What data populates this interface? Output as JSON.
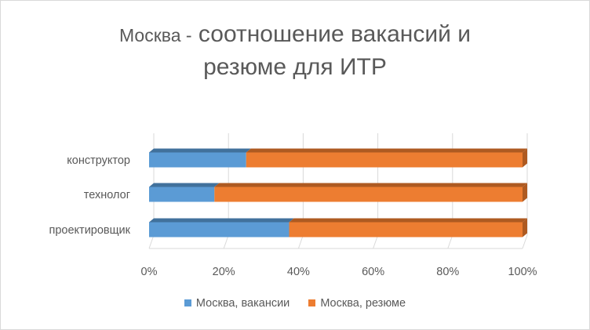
{
  "chart_data": {
    "type": "bar",
    "orientation": "horizontal",
    "stacking": "percent",
    "title_prefix": "Москва -",
    "title_rest_line1": "соотношение вакансий и",
    "title_line2": "резюме для ИТР",
    "categories": [
      "конструктор",
      "технолог",
      "проектировщик"
    ],
    "series": [
      {
        "name": "Москва, вакансии",
        "values": [
          26,
          17.5,
          37.5
        ],
        "color": "#5b9bd5",
        "color_dark": "#41719c"
      },
      {
        "name": "Москва, резюме",
        "values": [
          74,
          82.5,
          62.5
        ],
        "color": "#ed7d31",
        "color_dark": "#ae5a21"
      }
    ],
    "x_ticks": [
      "0%",
      "20%",
      "40%",
      "60%",
      "80%",
      "100%"
    ],
    "xlim": [
      0,
      100
    ],
    "grid": true,
    "legend_position": "bottom",
    "gridline_color": "#d9d9d9"
  }
}
